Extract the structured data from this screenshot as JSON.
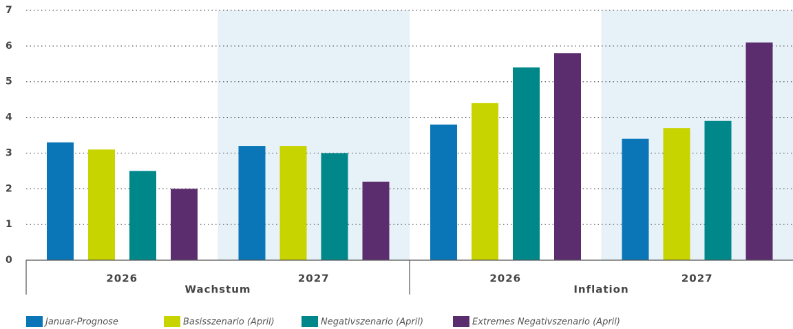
{
  "chart_data": {
    "type": "bar",
    "categories": [
      "2026",
      "2027",
      "2026",
      "2027"
    ],
    "category_groups": [
      "Wachstum",
      "Inflation"
    ],
    "series": [
      {
        "name": "Januar-Prognose",
        "color": "#0a76b7",
        "values": [
          3.3,
          3.2,
          3.8,
          3.4
        ]
      },
      {
        "name": "Basisszenario (April)",
        "color": "#c8d400",
        "values": [
          3.1,
          3.2,
          4.4,
          3.7
        ]
      },
      {
        "name": "Negativszenario (April)",
        "color": "#00878a",
        "values": [
          2.5,
          3.0,
          5.4,
          3.9
        ]
      },
      {
        "name": "Extremes Negativszenario (April)",
        "color": "#5c2d6e",
        "values": [
          2.0,
          2.2,
          5.8,
          6.1
        ]
      }
    ],
    "ylim": [
      0,
      7
    ],
    "yticks": [
      0,
      1,
      2,
      3,
      4,
      5,
      6,
      7
    ],
    "grid": true
  }
}
